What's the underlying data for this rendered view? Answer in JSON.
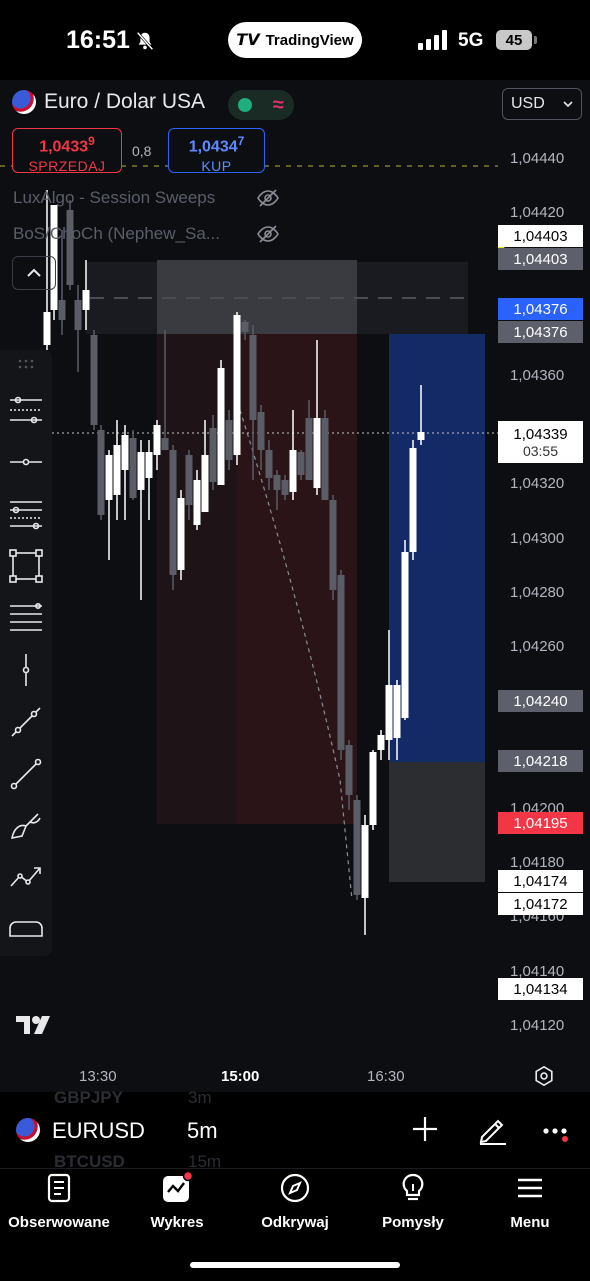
{
  "status_bar": {
    "time": "16:51",
    "app_pill": "TradingView",
    "network": "5G",
    "battery": "45"
  },
  "header": {
    "symbol_title": "Euro / Dolar USA",
    "currency": "USD",
    "sell": {
      "price_main": "1,0433",
      "price_sup": "9",
      "label": "SPRZEDAJ"
    },
    "spread": "0,8",
    "buy": {
      "price_main": "1,0434",
      "price_sup": "7",
      "label": "KUP"
    }
  },
  "indicators": [
    "LuxAlgo - Session Sweeps",
    "BoS/ChoCh (Nephew_Sa..."
  ],
  "price_axis": {
    "labels": [
      "1,04440",
      "1,04420",
      "1,04360",
      "1,04320",
      "1,04300",
      "1,04280",
      "1,04260",
      "1,04200",
      "1,04180",
      "1,04160",
      "1,04140",
      "1,04120"
    ],
    "tags": {
      "t1": "1,04403",
      "t2": "1,04403",
      "t3": "1,04376",
      "t4": "1,04376",
      "last": "1,04339",
      "countdown": "03:55",
      "t5": "1,04240",
      "t6": "1,04218",
      "t7": "1,04195",
      "t8": "1,04174",
      "t9": "1,04172",
      "t10": "1,04134"
    }
  },
  "time_axis": [
    "13:30",
    "15:00",
    "16:30"
  ],
  "symbol_bar": {
    "ghost_prev_symbol": "GBPJPY",
    "ghost_prev_interval": "3m",
    "symbol": "EURUSD",
    "interval": "5m",
    "ghost_next_symbol": "BTCUSD",
    "ghost_next_interval": "15m"
  },
  "nav": [
    {
      "label": "Obserwowane",
      "icon": "watchlist-icon"
    },
    {
      "label": "Wykres",
      "icon": "chart-icon"
    },
    {
      "label": "Odkrywaj",
      "icon": "compass-icon"
    },
    {
      "label": "Pomysły",
      "icon": "lightbulb-icon"
    },
    {
      "label": "Menu",
      "icon": "hamburger-icon"
    }
  ],
  "colors": {
    "up": "#ffffff",
    "down": "#5a5d66",
    "sell": "#f23645",
    "buy": "#2962ff",
    "blue_tag": "#2962ff",
    "red_tag": "#f23645"
  }
}
